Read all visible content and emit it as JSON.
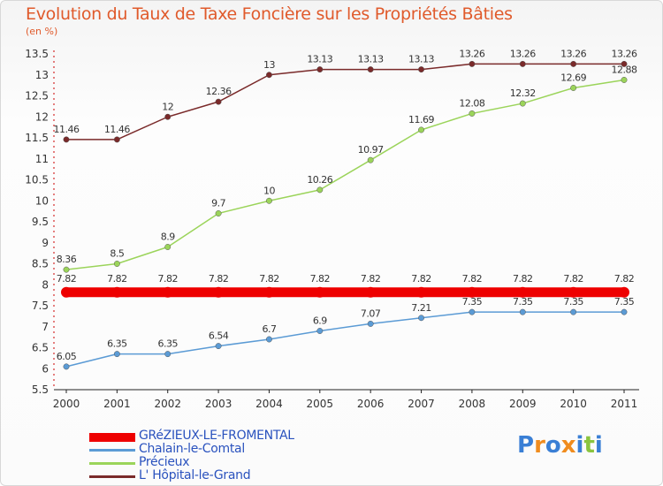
{
  "title": "Evolution du Taux de Taxe Foncière sur les Propriétés Bâties",
  "unit": "(en %)",
  "logo": {
    "text": "Proxiti",
    "colors": [
      "#3a7fd5",
      "#f08c1e",
      "#3a7fd5",
      "#f08c1e",
      "#3a7fd5",
      "#8ac43f",
      "#3a7fd5"
    ]
  },
  "chart_data": {
    "type": "line",
    "title": "Evolution du Taux de Taxe Foncière sur les Propriétés Bâties",
    "ylabel": "(en %)",
    "xlabel": "",
    "x": [
      "2000",
      "2001",
      "2002",
      "2003",
      "2004",
      "2005",
      "2006",
      "2007",
      "2008",
      "2009",
      "2010",
      "2011"
    ],
    "ylim": [
      5.5,
      13.5
    ],
    "yticks": [
      "5.5",
      "6",
      "6.5",
      "7",
      "7.5",
      "8",
      "8.5",
      "9",
      "9.5",
      "10",
      "10.5",
      "11",
      "11.5",
      "12",
      "12.5",
      "13",
      "13.5"
    ],
    "grid": false,
    "legend_position": "bottom-left",
    "series": [
      {
        "name": "GRéZIEUX-LE-FROMENTAL",
        "color": "#ee0000",
        "width": 11,
        "values": [
          7.82,
          7.82,
          7.82,
          7.82,
          7.82,
          7.82,
          7.82,
          7.82,
          7.82,
          7.82,
          7.82,
          7.82
        ],
        "labels": [
          "7.82",
          "7.82",
          "7.82",
          "7.82",
          "7.82",
          "7.82",
          "7.82",
          "7.82",
          "7.82",
          "7.82",
          "7.82",
          "7.82"
        ]
      },
      {
        "name": "Chalain-le-Comtal",
        "color": "#5b9bd5",
        "width": 1.5,
        "values": [
          6.05,
          6.35,
          6.35,
          6.54,
          6.7,
          6.9,
          7.07,
          7.21,
          7.35,
          7.35,
          7.35,
          7.35
        ],
        "labels": [
          "6.05",
          "6.35",
          "6.35",
          "6.54",
          "6.7",
          "6.9",
          "7.07",
          "7.21",
          "7.35",
          "7.35",
          "7.35",
          "7.35"
        ]
      },
      {
        "name": "Précieux",
        "color": "#9bd45a",
        "width": 1.5,
        "values": [
          8.36,
          8.5,
          8.9,
          9.7,
          10,
          10.26,
          10.97,
          11.69,
          12.08,
          12.32,
          12.69,
          12.88
        ],
        "labels": [
          "8.36",
          "8.5",
          "8.9",
          "9.7",
          "10",
          "10.26",
          "10.97",
          "11.69",
          "12.08",
          "12.32",
          "12.69",
          "12.88"
        ]
      },
      {
        "name": "L' Hôpital-le-Grand",
        "color": "#7a2a2a",
        "width": 1.5,
        "values": [
          11.46,
          11.46,
          12,
          12.36,
          13,
          13.13,
          13.13,
          13.13,
          13.26,
          13.26,
          13.26,
          13.26
        ],
        "labels": [
          "11.46",
          "11.46",
          "12",
          "12.36",
          "13",
          "13.13",
          "13.13",
          "13.13",
          "13.26",
          "13.26",
          "13.26",
          "13.26"
        ]
      }
    ]
  }
}
